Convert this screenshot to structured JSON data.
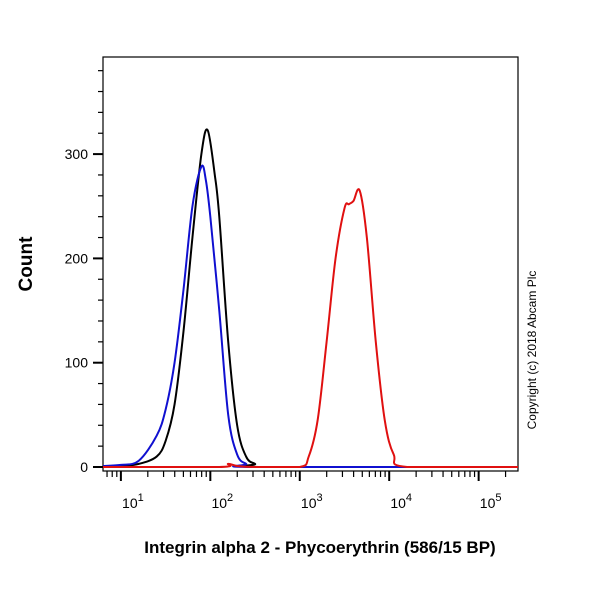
{
  "chart_data": {
    "type": "line",
    "title": "",
    "xlabel": "Integrin alpha 2 - Phycoerythrin (586/15 BP)",
    "ylabel": "Count",
    "xscale": "log",
    "xlim_log10": [
      0.8,
      5.44
    ],
    "ylim": [
      0,
      393
    ],
    "x_ticks": [
      {
        "base": "10",
        "exp": "1",
        "v": 1
      },
      {
        "base": "10",
        "exp": "2",
        "v": 2
      },
      {
        "base": "10",
        "exp": "3",
        "v": 3
      },
      {
        "base": "10",
        "exp": "4",
        "v": 4
      },
      {
        "base": "10",
        "exp": "5",
        "v": 5
      }
    ],
    "y_ticks": [
      {
        "label": "0",
        "v": 0
      },
      {
        "label": "100",
        "v": 100
      },
      {
        "label": "200",
        "v": 200
      },
      {
        "label": "300",
        "v": 300
      }
    ],
    "annotation": "Copyright (c) 2018 Abcam Plc",
    "series": [
      {
        "name": "black",
        "color": "#000000",
        "log10_x": [
          0.8,
          1.0,
          1.2,
          1.4,
          1.5,
          1.6,
          1.7,
          1.8,
          1.9,
          1.97,
          2.05,
          2.1,
          2.2,
          2.3,
          2.4,
          2.5,
          2.6,
          5.44
        ],
        "y": [
          0,
          1,
          3,
          10,
          25,
          60,
          130,
          220,
          300,
          323,
          280,
          240,
          120,
          40,
          10,
          3,
          0,
          0
        ]
      },
      {
        "name": "blue",
        "color": "#1010d0",
        "log10_x": [
          0.8,
          1.0,
          1.2,
          1.4,
          1.5,
          1.6,
          1.7,
          1.8,
          1.9,
          1.95,
          2.0,
          2.1,
          2.2,
          2.3,
          2.4,
          2.5,
          5.44
        ],
        "y": [
          1,
          2,
          6,
          30,
          55,
          100,
          170,
          250,
          288,
          275,
          240,
          150,
          50,
          12,
          3,
          0,
          0
        ]
      },
      {
        "name": "red",
        "color": "#e01010",
        "log10_x": [
          0.8,
          2.1,
          2.2,
          2.3,
          2.5,
          3.0,
          3.1,
          3.2,
          3.3,
          3.4,
          3.5,
          3.55,
          3.6,
          3.67,
          3.75,
          3.85,
          3.95,
          4.05,
          4.2,
          5.44
        ],
        "y": [
          0,
          0,
          3,
          1,
          0,
          0,
          10,
          45,
          120,
          200,
          248,
          252,
          255,
          265,
          220,
          120,
          45,
          12,
          0,
          0
        ]
      }
    ]
  }
}
